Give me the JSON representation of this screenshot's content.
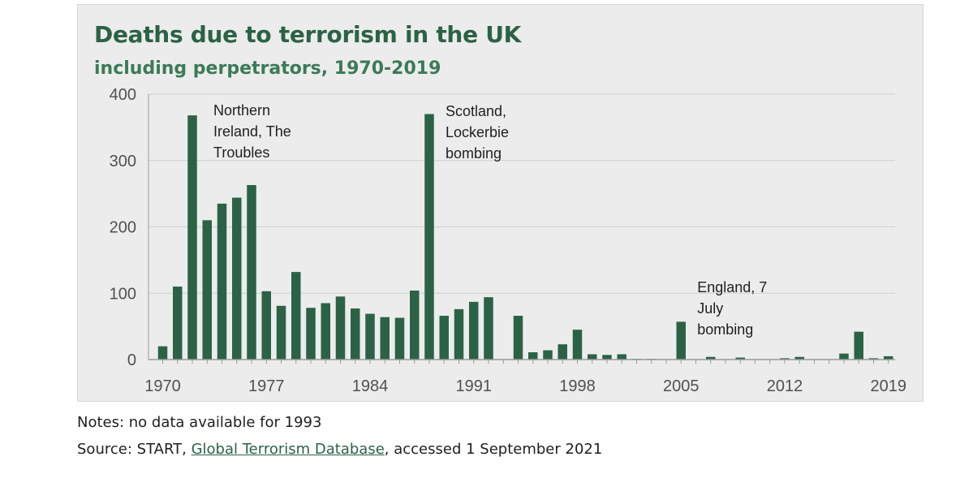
{
  "title": "Deaths due to terrorism in the UK",
  "subtitle": "including perpetrators, 1970-2019",
  "notes": "Notes: no data available for 1993",
  "source": {
    "prefix": "Source: START, ",
    "link_text": "Global Terrorism Database",
    "suffix": ", accessed 1 September 2021"
  },
  "colors": {
    "bar": "#2b6246",
    "grid": "#cfcfcf",
    "axis": "#9a9a9a"
  },
  "chart_data": {
    "type": "bar",
    "title": "Deaths due to terrorism in the UK",
    "subtitle": "including perpetrators, 1970-2019",
    "xlabel": "",
    "ylabel": "",
    "ylim": [
      0,
      400
    ],
    "yticks": [
      0,
      100,
      200,
      300,
      400
    ],
    "xtick_labels": [
      "1970",
      "1977",
      "1984",
      "1991",
      "1998",
      "2005",
      "2012",
      "2019"
    ],
    "grid": true,
    "x": [
      1970,
      1971,
      1972,
      1973,
      1974,
      1975,
      1976,
      1977,
      1978,
      1979,
      1980,
      1981,
      1982,
      1983,
      1984,
      1985,
      1986,
      1987,
      1988,
      1989,
      1990,
      1991,
      1992,
      1993,
      1994,
      1995,
      1996,
      1997,
      1998,
      1999,
      2000,
      2001,
      2002,
      2003,
      2004,
      2005,
      2006,
      2007,
      2008,
      2009,
      2010,
      2011,
      2012,
      2013,
      2014,
      2015,
      2016,
      2017,
      2018,
      2019
    ],
    "values": [
      20,
      110,
      368,
      210,
      235,
      244,
      263,
      103,
      81,
      132,
      78,
      85,
      95,
      77,
      69,
      64,
      63,
      104,
      370,
      66,
      76,
      87,
      94,
      null,
      66,
      11,
      14,
      23,
      45,
      8,
      7,
      8,
      1,
      1,
      0,
      57,
      0,
      4,
      0,
      3,
      0,
      0,
      2,
      4,
      0,
      0,
      9,
      42,
      2,
      5
    ],
    "annotations": [
      {
        "year": 1972,
        "lines": [
          "Northern",
          "Ireland, The",
          "Troubles"
        ]
      },
      {
        "year": 1988,
        "lines": [
          "Scotland,",
          "Lockerbie",
          "bombing"
        ]
      },
      {
        "year": 2005,
        "lines": [
          "England, 7",
          "July",
          "bombing"
        ]
      }
    ]
  }
}
